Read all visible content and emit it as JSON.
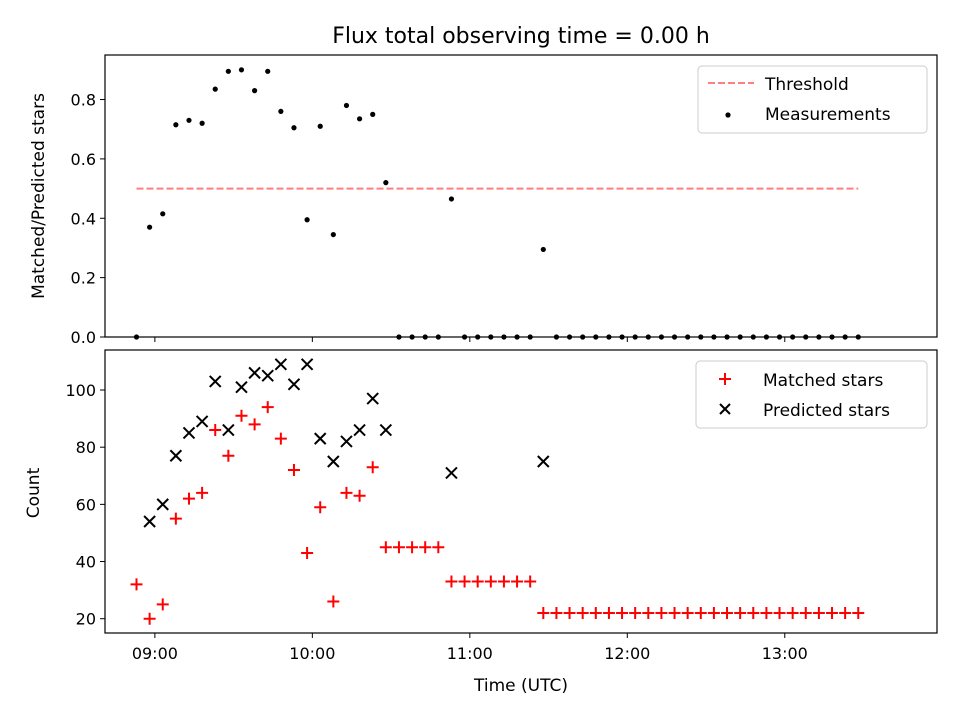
{
  "title": "Flux total observing time = 0.00 h",
  "colors": {
    "threshold": "#ff7f7f",
    "measurements": "#000000",
    "matched": "#ff0000",
    "predicted": "#000000"
  },
  "chart_data": [
    {
      "type": "scatter",
      "panel": "top",
      "ylabel": "Matched/Predicted stars",
      "xlim": [
        "08:41",
        "13:58"
      ],
      "ylim": [
        0,
        0.95
      ],
      "yticks": [
        0.0,
        0.2,
        0.4,
        0.6,
        0.8
      ],
      "ytick_labels": [
        "0.0",
        "0.2",
        "0.4",
        "0.6",
        "0.8"
      ],
      "legend": {
        "position": "upper right",
        "entries": [
          "Threshold",
          "Measurements"
        ]
      },
      "threshold": {
        "name": "Threshold",
        "style": "dashed",
        "y": 0.5,
        "x_start": "08:53",
        "x_end": "13:28"
      },
      "series": [
        {
          "name": "Measurements",
          "marker": "dot",
          "x": [
            "08:53",
            "08:58",
            "09:03",
            "09:08",
            "09:13",
            "09:18",
            "09:23",
            "09:28",
            "09:33",
            "09:38",
            "09:43",
            "09:48",
            "09:53",
            "09:58",
            "10:03",
            "10:08",
            "10:13",
            "10:18",
            "10:23",
            "10:28",
            "10:33",
            "10:38",
            "10:43",
            "10:48",
            "10:53",
            "10:58",
            "11:03",
            "11:08",
            "11:13",
            "11:18",
            "11:23",
            "11:28",
            "11:33",
            "11:38",
            "11:43",
            "11:48",
            "11:53",
            "11:58",
            "12:03",
            "12:08",
            "12:13",
            "12:18",
            "12:23",
            "12:28",
            "12:33",
            "12:38",
            "12:43",
            "12:48",
            "12:53",
            "12:58",
            "13:03",
            "13:08",
            "13:13",
            "13:18",
            "13:23",
            "13:28"
          ],
          "y": [
            0.0,
            0.37,
            0.415,
            0.715,
            0.73,
            0.72,
            0.835,
            0.895,
            0.9,
            0.83,
            0.895,
            0.76,
            0.705,
            0.395,
            0.71,
            0.345,
            0.78,
            0.735,
            0.75,
            0.52,
            0.0,
            0.0,
            0.0,
            0.0,
            0.465,
            0.0,
            0.0,
            0.0,
            0.0,
            0.0,
            0.0,
            0.295,
            0.0,
            0.0,
            0.0,
            0.0,
            0.0,
            0.0,
            0.0,
            0.0,
            0.0,
            0.0,
            0.0,
            0.0,
            0.0,
            0.0,
            0.0,
            0.0,
            0.0,
            0.0,
            0.0,
            0.0,
            0.0,
            0.0,
            0.0,
            0.0
          ]
        }
      ]
    },
    {
      "type": "scatter",
      "panel": "bottom",
      "xlabel": "Time (UTC)",
      "ylabel": "Count",
      "xlim": [
        "08:41",
        "13:58"
      ],
      "ylim": [
        15,
        114
      ],
      "xticks": [
        "09:00",
        "10:00",
        "11:00",
        "12:00",
        "13:00"
      ],
      "yticks": [
        20,
        40,
        60,
        80,
        100
      ],
      "ytick_labels": [
        "20",
        "40",
        "60",
        "80",
        "100"
      ],
      "legend": {
        "position": "upper right",
        "entries": [
          "Matched stars",
          "Predicted stars"
        ]
      },
      "series": [
        {
          "name": "Matched stars",
          "marker": "plus",
          "x": [
            "08:53",
            "08:58",
            "09:03",
            "09:08",
            "09:13",
            "09:18",
            "09:23",
            "09:28",
            "09:33",
            "09:38",
            "09:43",
            "09:48",
            "09:53",
            "09:58",
            "10:03",
            "10:08",
            "10:13",
            "10:18",
            "10:23",
            "10:28",
            "10:33",
            "10:38",
            "10:43",
            "10:48",
            "10:53",
            "10:58",
            "11:03",
            "11:08",
            "11:13",
            "11:18",
            "11:23",
            "11:28",
            "11:33",
            "11:38",
            "11:43",
            "11:48",
            "11:53",
            "11:58",
            "12:03",
            "12:08",
            "12:13",
            "12:18",
            "12:23",
            "12:28",
            "12:33",
            "12:38",
            "12:43",
            "12:48",
            "12:53",
            "12:58",
            "13:03",
            "13:08",
            "13:13",
            "13:18",
            "13:23",
            "13:28"
          ],
          "y": [
            32,
            20,
            25,
            55,
            62,
            64,
            86,
            77,
            91,
            88,
            94,
            83,
            72,
            43,
            59,
            26,
            64,
            63,
            73,
            45,
            45,
            45,
            45,
            45,
            33,
            33,
            33,
            33,
            33,
            33,
            33,
            22,
            22,
            22,
            22,
            22,
            22,
            22,
            22,
            22,
            22,
            22,
            22,
            22,
            22,
            22,
            22,
            22,
            22,
            22,
            22,
            22,
            22,
            22,
            22,
            22
          ]
        },
        {
          "name": "Predicted stars",
          "marker": "x",
          "x": [
            "08:58",
            "09:03",
            "09:08",
            "09:13",
            "09:18",
            "09:23",
            "09:28",
            "09:33",
            "09:38",
            "09:43",
            "09:48",
            "09:53",
            "09:58",
            "10:03",
            "10:08",
            "10:13",
            "10:18",
            "10:23",
            "10:28",
            "10:53",
            "11:28"
          ],
          "y": [
            54,
            60,
            77,
            85,
            89,
            103,
            86,
            101,
            106,
            105,
            109,
            102,
            109,
            83,
            75,
            82,
            86,
            97,
            86,
            71,
            75
          ]
        }
      ]
    }
  ]
}
